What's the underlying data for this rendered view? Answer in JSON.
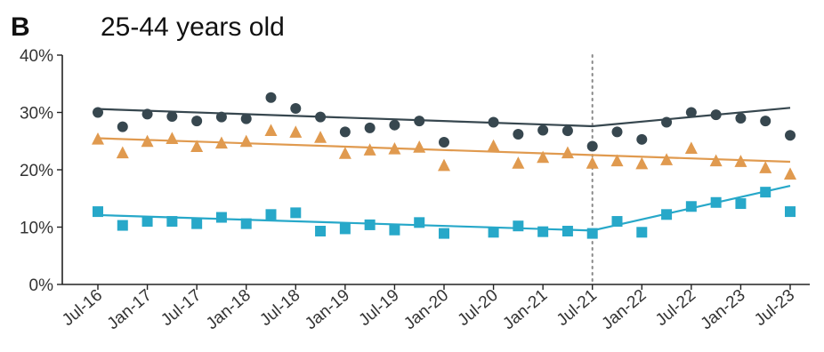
{
  "panel_label": "B",
  "chart_data": {
    "type": "scatter",
    "title": "25-44 years old",
    "xlabel": "",
    "ylabel": "",
    "ylim": [
      0,
      40
    ],
    "y_ticks": [
      "0%",
      "10%",
      "20%",
      "30%",
      "40%"
    ],
    "x_ticks": [
      "Jul-16",
      "Jan-17",
      "Jul-17",
      "Jan-18",
      "Jul-18",
      "Jan-19",
      "Jul-19",
      "Jan-20",
      "Jul-20",
      "Jan-21",
      "Jul-21",
      "Jan-22",
      "Jul-22",
      "Jan-23",
      "Jul-23"
    ],
    "x": [
      "2016-07",
      "2016-10",
      "2017-01",
      "2017-04",
      "2017-07",
      "2017-10",
      "2018-01",
      "2018-04",
      "2018-07",
      "2018-10",
      "2019-01",
      "2019-04",
      "2019-07",
      "2019-10",
      "2020-01",
      "2020-07",
      "2020-10",
      "2021-01",
      "2021-04",
      "2021-07",
      "2021-10",
      "2022-01",
      "2022-04",
      "2022-07",
      "2022-10",
      "2023-01",
      "2023-04",
      "2023-07"
    ],
    "intervention": "2021-07",
    "grid": false,
    "legend": "none",
    "series": [
      {
        "color": "#37474f",
        "marker": "circle",
        "values": [
          30.0,
          27.5,
          29.7,
          29.3,
          28.5,
          29.2,
          28.9,
          32.6,
          30.7,
          29.2,
          26.6,
          27.3,
          27.8,
          28.5,
          24.8,
          28.3,
          26.2,
          26.9,
          26.8,
          24.1,
          26.6,
          25.3,
          28.3,
          30.0,
          29.6,
          29.0,
          28.5,
          26.0
        ],
        "trend": [
          [
            0,
            30.6
          ],
          [
            19,
            27.6
          ],
          [
            27,
            30.8
          ]
        ]
      },
      {
        "color": "#e09a4f",
        "marker": "triangle",
        "values": [
          25.3,
          22.9,
          24.9,
          25.4,
          24.0,
          24.6,
          24.9,
          26.8,
          26.5,
          25.6,
          22.8,
          23.4,
          23.6,
          23.9,
          20.7,
          24.1,
          21.1,
          22.1,
          22.9,
          21.1,
          21.5,
          21.0,
          21.7,
          23.7,
          21.5,
          21.4,
          20.3,
          19.2
        ],
        "trend": [
          [
            0,
            25.5
          ],
          [
            27,
            21.4
          ]
        ]
      },
      {
        "color": "#27a8c9",
        "marker": "square",
        "values": [
          12.7,
          10.3,
          11.0,
          11.0,
          10.6,
          11.7,
          10.6,
          12.2,
          12.5,
          9.3,
          9.7,
          10.4,
          9.5,
          10.8,
          8.9,
          9.1,
          10.2,
          9.2,
          9.3,
          8.9,
          11.0,
          9.1,
          12.2,
          13.6,
          14.3,
          14.1,
          16.1,
          12.7
        ],
        "trend": [
          [
            0,
            12.1
          ],
          [
            19,
            9.4
          ],
          [
            27,
            17.2
          ]
        ]
      }
    ]
  }
}
